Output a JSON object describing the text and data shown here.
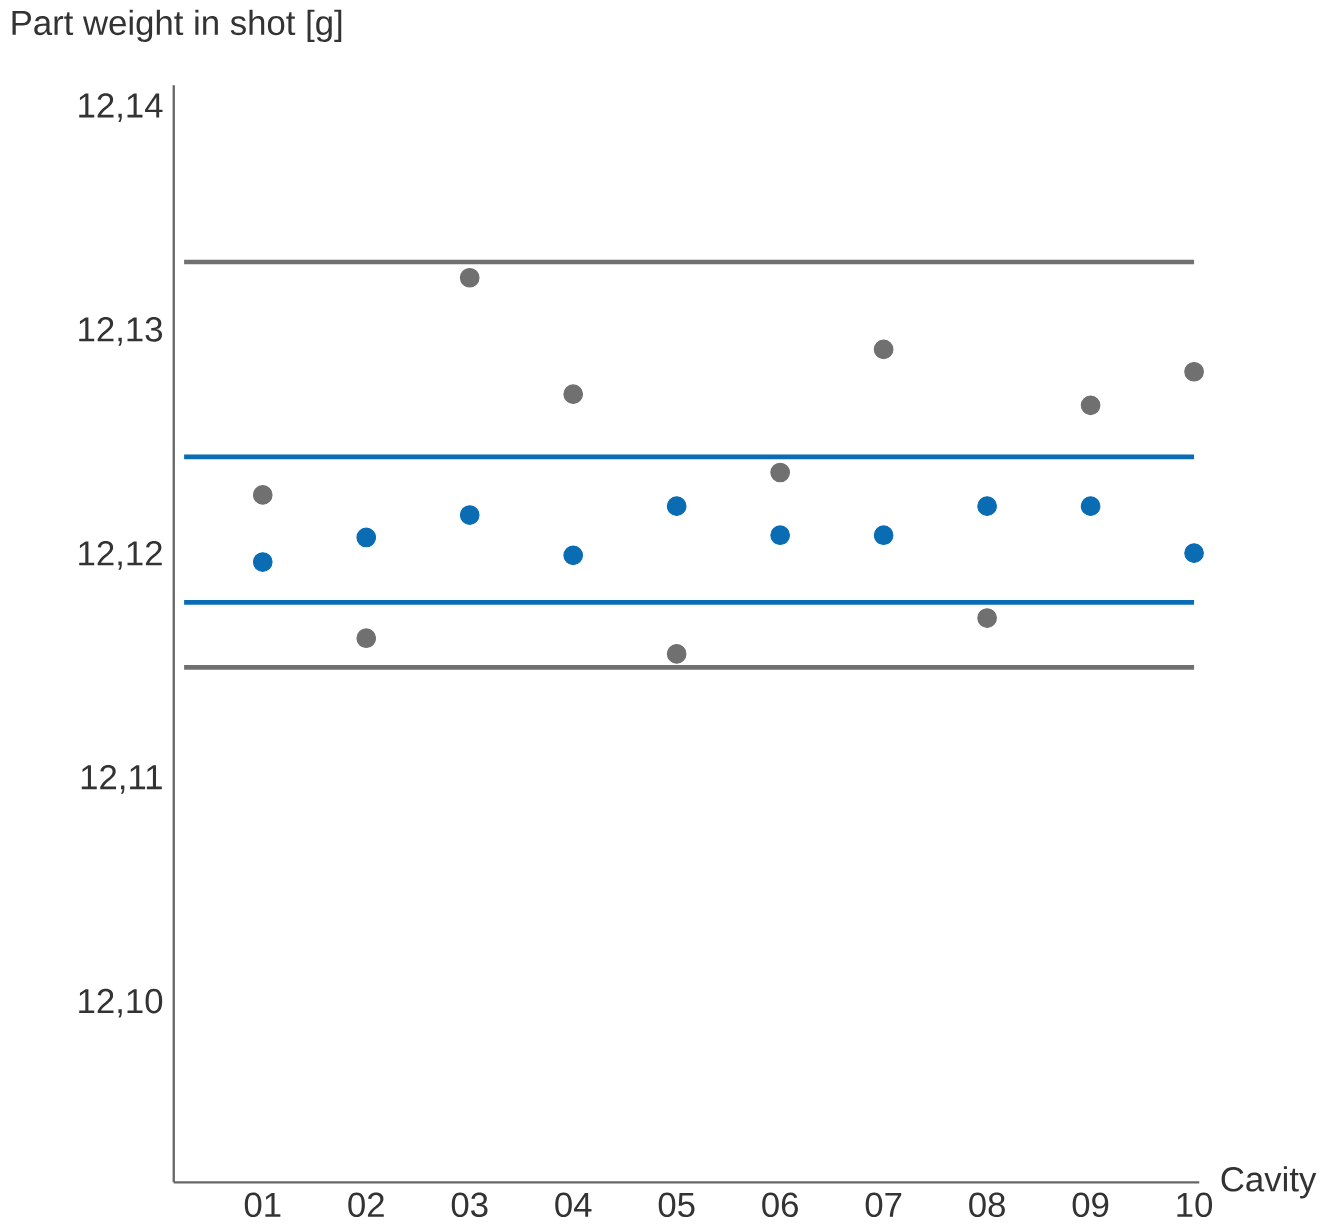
{
  "chart_data": {
    "type": "scatter",
    "ylabel": "Part weight in shot [g]",
    "xlabel": "Cavity",
    "categories": [
      "01",
      "02",
      "03",
      "04",
      "05",
      "06",
      "07",
      "08",
      "09",
      "10"
    ],
    "series": [
      {
        "color": "#0a6db3",
        "values": [
          12.1197,
          12.1208,
          12.1218,
          12.12,
          12.1222,
          12.1209,
          12.1209,
          12.1222,
          12.1222,
          12.1201
        ]
      },
      {
        "color": "#707070",
        "values": [
          12.1227,
          12.1163,
          12.1324,
          12.1272,
          12.1156,
          12.1237,
          12.1292,
          12.1172,
          12.1267,
          12.1282
        ]
      }
    ],
    "ref_lines": [
      {
        "axis": "y",
        "value": 12.1244,
        "color": "#0a6db3"
      },
      {
        "axis": "y",
        "value": 12.1179,
        "color": "#0a6db3"
      },
      {
        "axis": "y",
        "value": 12.1331,
        "color": "#707070"
      },
      {
        "axis": "y",
        "value": 12.115,
        "color": "#707070"
      }
    ],
    "ylim": [
      12.092,
      12.141
    ],
    "yticks": [
      {
        "value": 12.1,
        "label": "12,10"
      },
      {
        "value": 12.11,
        "label": "12,11"
      },
      {
        "value": 12.12,
        "label": "12,12"
      },
      {
        "value": 12.13,
        "label": "12,13"
      },
      {
        "value": 12.14,
        "label": "12,14"
      }
    ],
    "marker": "circle",
    "grid": false
  }
}
